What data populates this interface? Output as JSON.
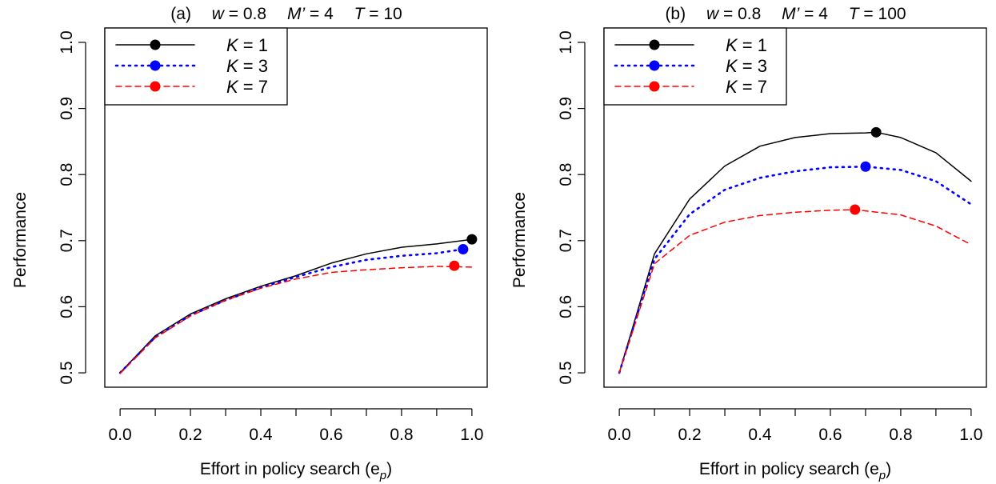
{
  "chart_data": [
    {
      "type": "line",
      "title": {
        "label": "(a)",
        "w": "0.8",
        "m": "4",
        "t": "10"
      },
      "xlabel": "Effort in policy search (e",
      "xlabel_sub": "p",
      "ylabel": "Performance",
      "xlim": [
        0,
        1
      ],
      "ylim": [
        0.5,
        1.0
      ],
      "xticks": [
        0.0,
        0.1,
        0.2,
        0.3,
        0.4,
        0.5,
        0.6,
        0.7,
        0.8,
        0.9,
        1.0
      ],
      "xtick_labels": [
        "0.0",
        "0.2",
        "0.4",
        "0.6",
        "0.8",
        "1.0"
      ],
      "xtick_label_values": [
        0.0,
        0.2,
        0.4,
        0.6,
        0.8,
        1.0
      ],
      "yticks": [
        0.5,
        0.6,
        0.7,
        0.8,
        0.9,
        1.0
      ],
      "ytick_labels": [
        "0.5",
        "0.6",
        "0.7",
        "0.8",
        "0.9",
        "1.0"
      ],
      "legend_position": "top-left",
      "series": [
        {
          "name": "K = 1",
          "k": "1",
          "color": "#000000",
          "dash": "solid",
          "x": [
            0.0,
            0.1,
            0.2,
            0.3,
            0.4,
            0.5,
            0.6,
            0.7,
            0.8,
            0.9,
            1.0
          ],
          "y": [
            0.5,
            0.556,
            0.589,
            0.612,
            0.631,
            0.647,
            0.666,
            0.68,
            0.69,
            0.695,
            0.702
          ],
          "peak": {
            "x": 1.0,
            "y": 0.702
          }
        },
        {
          "name": "K = 3",
          "k": "3",
          "color": "#0000ff",
          "dash": "dotted",
          "x": [
            0.0,
            0.1,
            0.2,
            0.3,
            0.4,
            0.5,
            0.6,
            0.7,
            0.8,
            0.9,
            0.975
          ],
          "y": [
            0.5,
            0.554,
            0.587,
            0.61,
            0.629,
            0.645,
            0.66,
            0.671,
            0.677,
            0.681,
            0.687
          ],
          "peak": {
            "x": 0.975,
            "y": 0.687
          }
        },
        {
          "name": "K = 7",
          "k": "7",
          "color": "#ff0000",
          "dash": "dashed",
          "x": [
            0.0,
            0.1,
            0.2,
            0.3,
            0.4,
            0.5,
            0.6,
            0.7,
            0.8,
            0.9,
            1.0
          ],
          "y": [
            0.499,
            0.553,
            0.586,
            0.61,
            0.628,
            0.642,
            0.652,
            0.656,
            0.659,
            0.661,
            0.66
          ],
          "peak": {
            "x": 0.95,
            "y": 0.662
          }
        }
      ]
    },
    {
      "type": "line",
      "title": {
        "label": "(b)",
        "w": "0.8",
        "m": "4",
        "t": "100"
      },
      "xlabel": "Effort in policy search (e",
      "xlabel_sub": "p",
      "ylabel": "Performance",
      "xlim": [
        0,
        1
      ],
      "ylim": [
        0.5,
        1.0
      ],
      "xticks": [
        0.0,
        0.1,
        0.2,
        0.3,
        0.4,
        0.5,
        0.6,
        0.7,
        0.8,
        0.9,
        1.0
      ],
      "xtick_labels": [
        "0.0",
        "0.2",
        "0.4",
        "0.6",
        "0.8",
        "1.0"
      ],
      "xtick_label_values": [
        0.0,
        0.2,
        0.4,
        0.6,
        0.8,
        1.0
      ],
      "yticks": [
        0.5,
        0.6,
        0.7,
        0.8,
        0.9,
        1.0
      ],
      "ytick_labels": [
        "0.5",
        "0.6",
        "0.7",
        "0.8",
        "0.9",
        "1.0"
      ],
      "legend_position": "top-left",
      "series": [
        {
          "name": "K = 1",
          "k": "1",
          "color": "#000000",
          "dash": "solid",
          "x": [
            0.0,
            0.1,
            0.2,
            0.3,
            0.4,
            0.5,
            0.6,
            0.7,
            0.73,
            0.8,
            0.9,
            1.0
          ],
          "y": [
            0.5,
            0.68,
            0.763,
            0.813,
            0.843,
            0.856,
            0.862,
            0.863,
            0.864,
            0.856,
            0.833,
            0.79
          ],
          "peak": {
            "x": 0.73,
            "y": 0.864
          }
        },
        {
          "name": "K = 3",
          "k": "3",
          "color": "#0000ff",
          "dash": "dotted",
          "x": [
            0.0,
            0.1,
            0.2,
            0.3,
            0.4,
            0.5,
            0.6,
            0.7,
            0.8,
            0.9,
            1.0
          ],
          "y": [
            0.5,
            0.672,
            0.74,
            0.777,
            0.795,
            0.805,
            0.811,
            0.812,
            0.807,
            0.79,
            0.755
          ],
          "peak": {
            "x": 0.7,
            "y": 0.812
          }
        },
        {
          "name": "K = 7",
          "k": "7",
          "color": "#ff0000",
          "dash": "dashed",
          "x": [
            0.0,
            0.1,
            0.2,
            0.3,
            0.4,
            0.5,
            0.6,
            0.67,
            0.7,
            0.8,
            0.9,
            1.0
          ],
          "y": [
            0.5,
            0.665,
            0.708,
            0.728,
            0.738,
            0.743,
            0.746,
            0.747,
            0.745,
            0.739,
            0.722,
            0.694
          ],
          "peak": {
            "x": 0.67,
            "y": 0.747
          }
        }
      ]
    }
  ]
}
